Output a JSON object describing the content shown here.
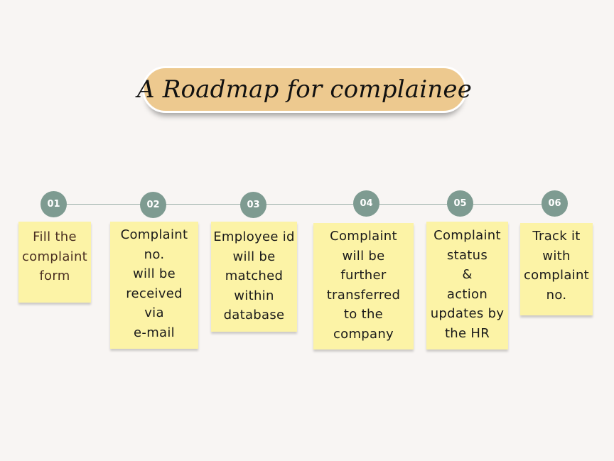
{
  "title": "A Roadmap for complainee",
  "colors": {
    "background": "#f8f5f3",
    "title_pill": "#edc98f",
    "node": "#7e9b91",
    "note": "#fcf3a6"
  },
  "steps": [
    {
      "number": "01",
      "text": "Fill the\ncomplaint\nform"
    },
    {
      "number": "02",
      "text": "Complaint\nno.\nwill be\nreceived\nvia\ne-mail"
    },
    {
      "number": "03",
      "text": "Employee id\nwill be\nmatched\nwithin\ndatabase"
    },
    {
      "number": "04",
      "text": "Complaint\nwill be\nfurther\ntransferred\nto the\ncompany"
    },
    {
      "number": "05",
      "text": "Complaint\nstatus\n&\naction\nupdates by\nthe HR"
    },
    {
      "number": "06",
      "text": "Track it\nwith\ncomplaint\nno."
    }
  ]
}
